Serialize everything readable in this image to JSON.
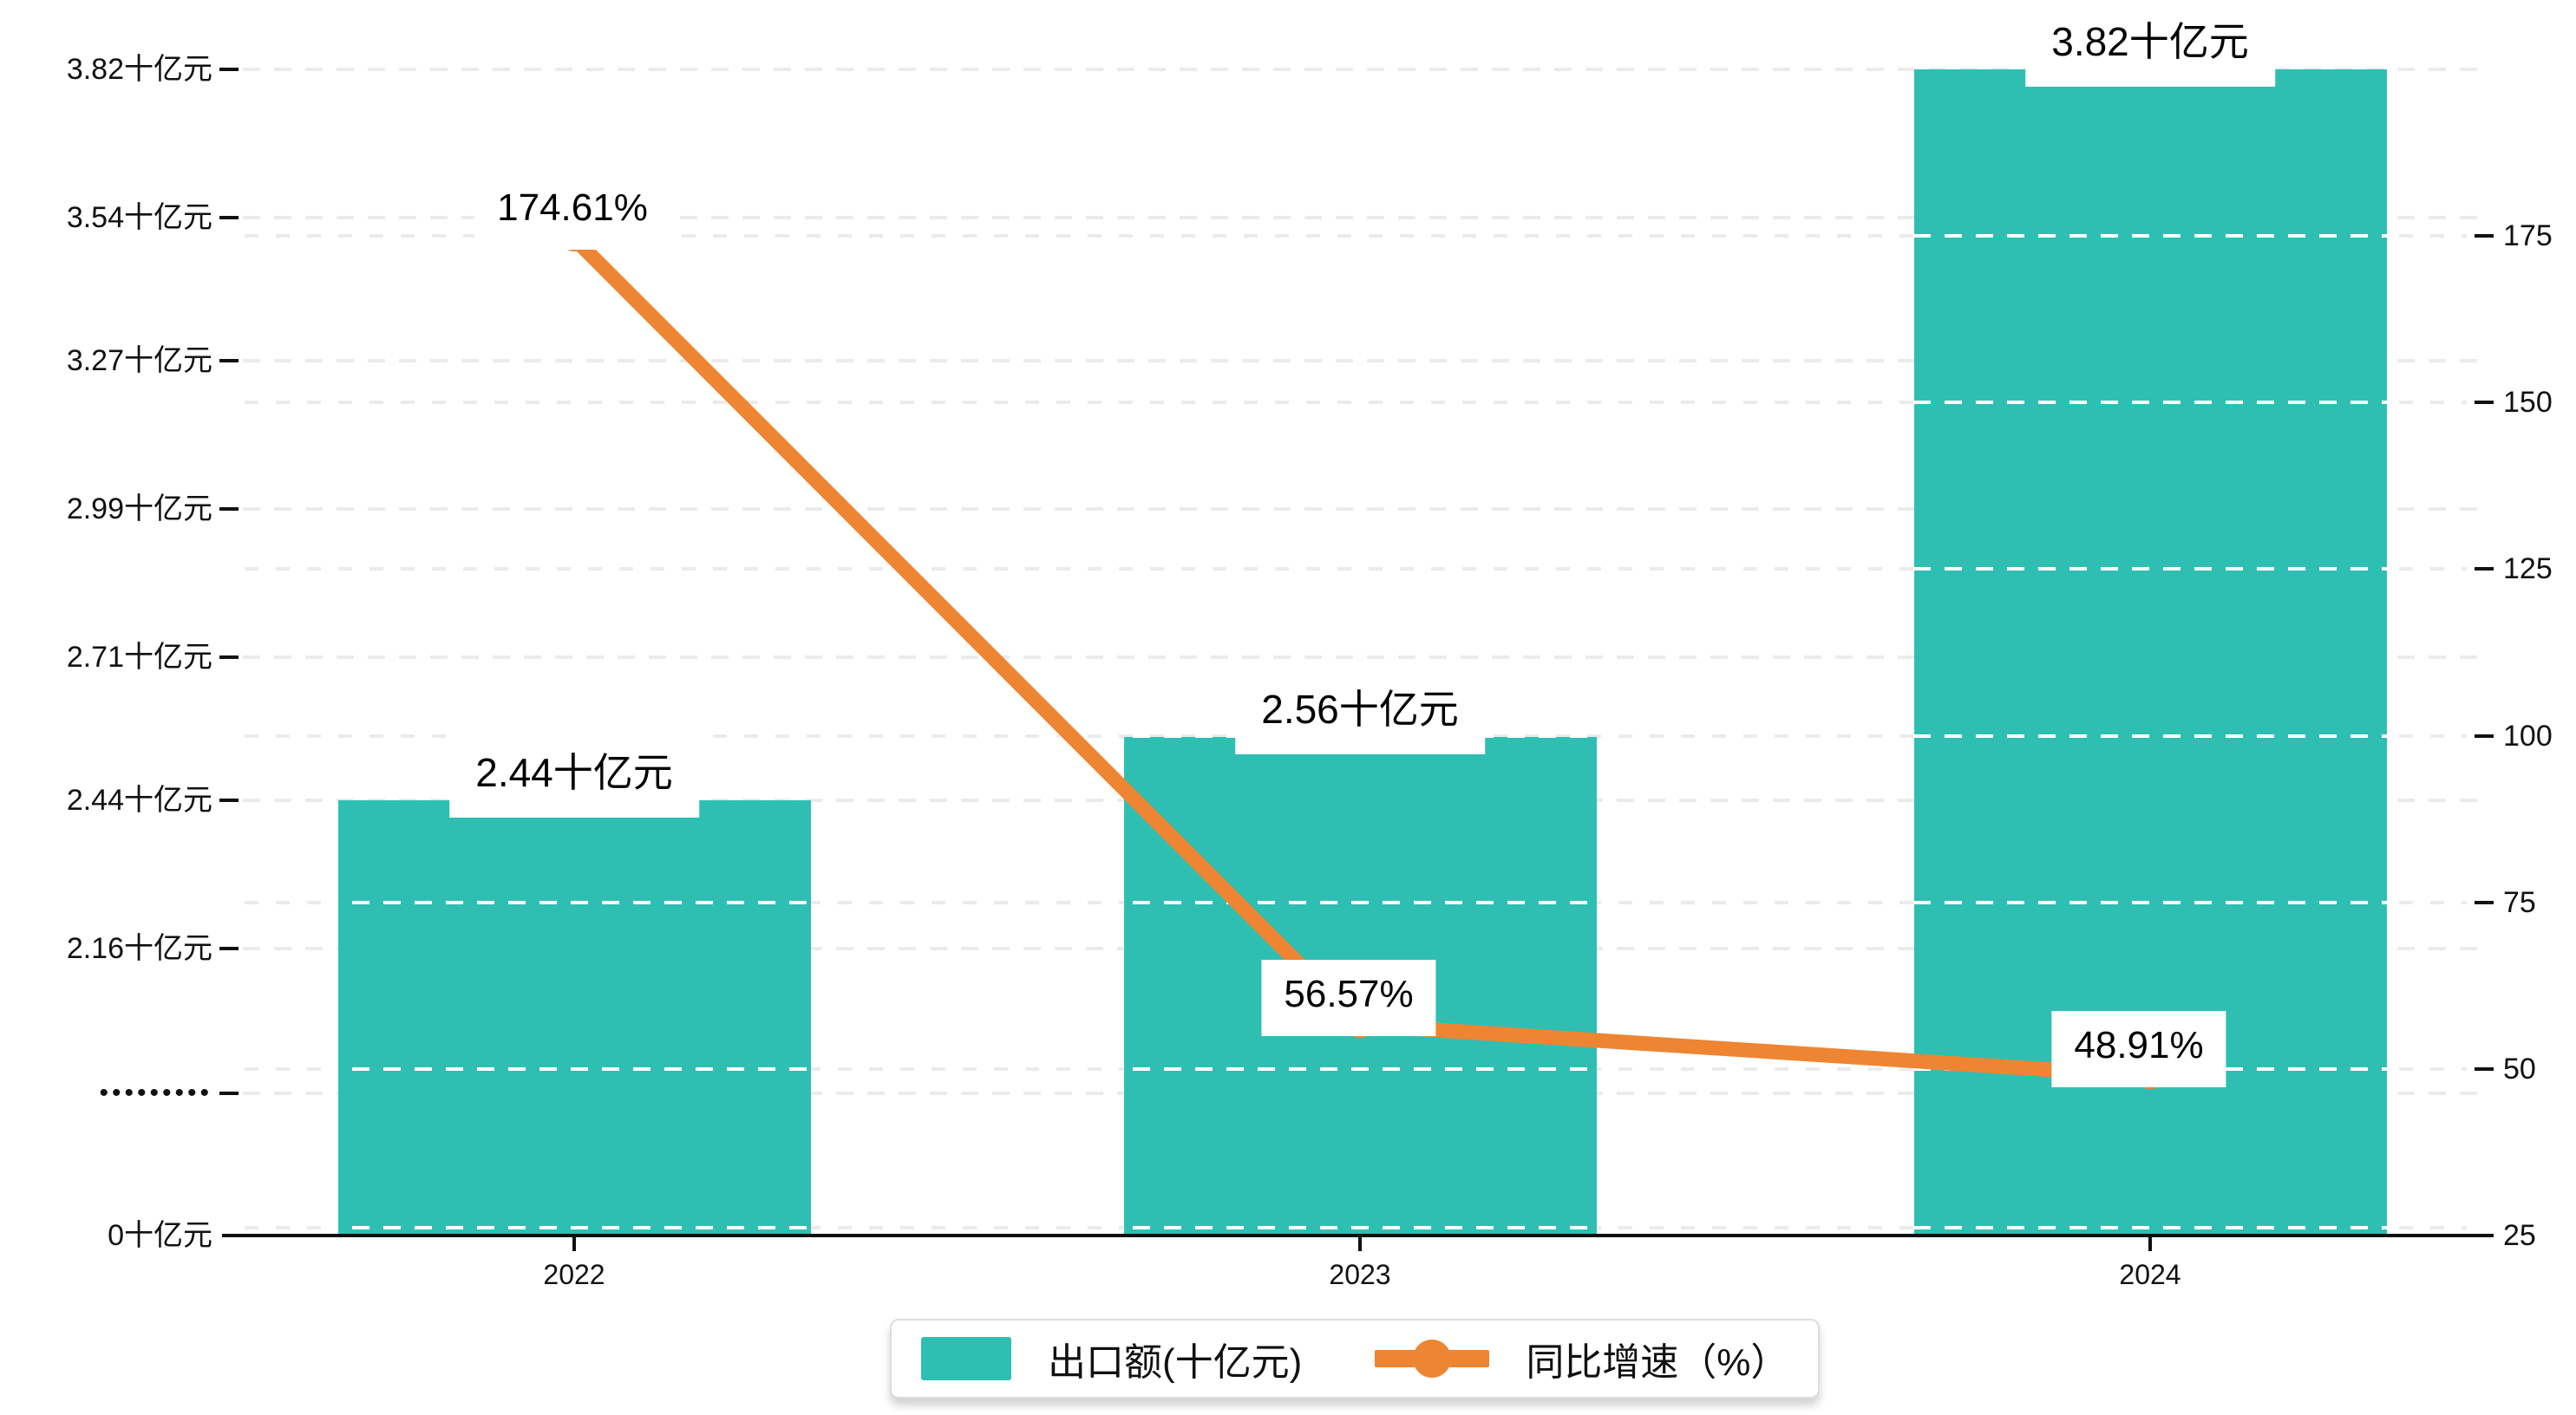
{
  "chart_data": {
    "type": "bar+line",
    "categories": [
      "2022",
      "2023",
      "2024"
    ],
    "series": [
      {
        "name": "出口额(十亿元)",
        "type": "bar",
        "values": [
          2.44,
          2.56,
          3.82
        ],
        "labels": [
          "2.44十亿元",
          "2.56十亿元",
          "3.82十亿元"
        ],
        "color": "#2fbfb2"
      },
      {
        "name": "同比增速（%）",
        "type": "line",
        "values": [
          174.61,
          56.57,
          48.91
        ],
        "labels": [
          "174.61%",
          "56.57%",
          "48.91%"
        ],
        "color": "#ee8532"
      }
    ],
    "left_axis": {
      "tick_labels": [
        "3.82十亿元",
        "3.54十亿元",
        "3.27十亿元",
        "2.99十亿元",
        "2.71十亿元",
        "2.44十亿元",
        "2.16十亿元"
      ],
      "tick_values": [
        3.82,
        3.54,
        3.27,
        2.99,
        2.71,
        2.44,
        2.16
      ],
      "break_label": "•••••••••",
      "zero_label": "0十亿元",
      "axis_break": true
    },
    "right_axis": {
      "tick_labels": [
        "175",
        "150",
        "125",
        "100",
        "75",
        "50",
        "25"
      ],
      "tick_values": [
        175,
        150,
        125,
        100,
        75,
        50,
        25
      ],
      "range": [
        25,
        175
      ]
    },
    "legend": {
      "bar_label": "出口额(十亿元)",
      "line_label": "同比增速（%）"
    },
    "grid": "dashed horizontal",
    "legend_position": "bottom-center",
    "colors": {
      "bar": "#2fbfb2",
      "line": "#ee8532",
      "gridline": "#ebebeb",
      "gridline_over_bar": "#ffffff",
      "axis": "#111111",
      "label_background": "#ffffff"
    }
  }
}
